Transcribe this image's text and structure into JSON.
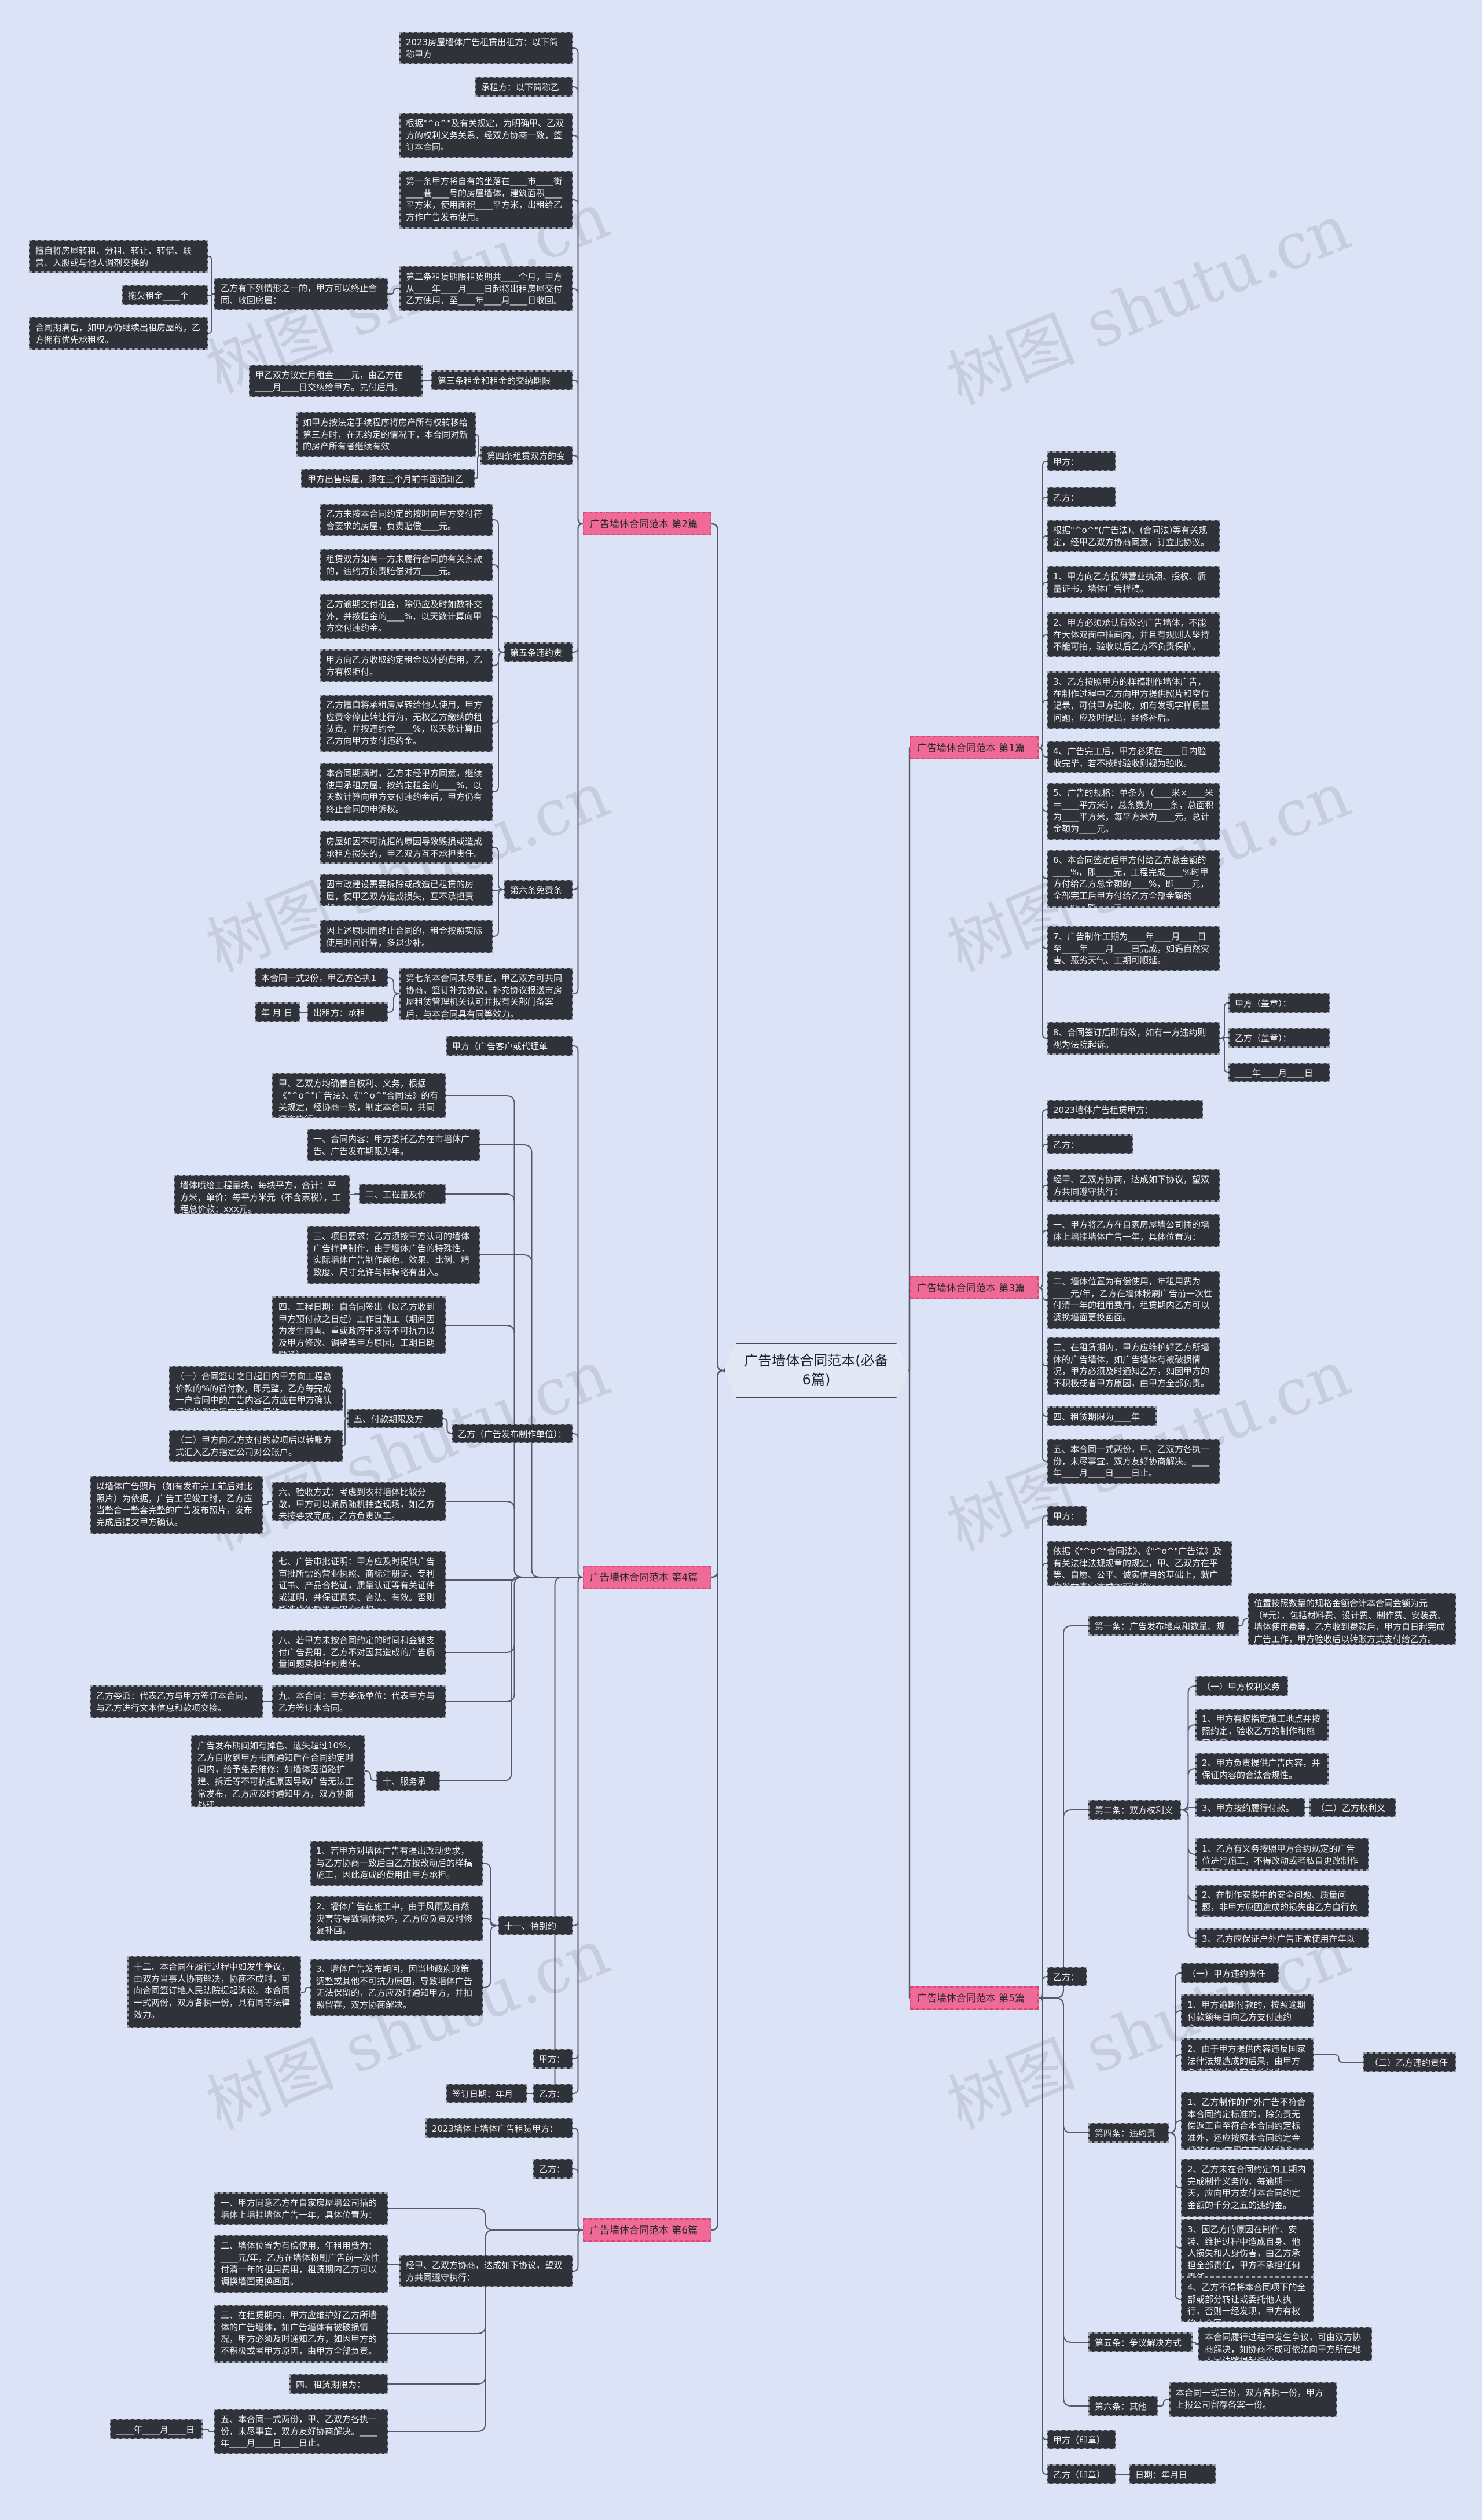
{
  "watermark": "树图 shutu.cn",
  "center": "广告墙体合同范本(必备6篇)",
  "sections": {
    "s1": "广告墙体合同范本 第1篇",
    "s2": "广告墙体合同范本 第2篇",
    "s3": "广告墙体合同范本 第3篇",
    "s4": "广告墙体合同范本 第4篇",
    "s5": "广告墙体合同范本 第5篇",
    "s6": "广告墙体合同范本 第6篇"
  },
  "nodes": {
    "s1_a": "甲方：________",
    "s1_b": "乙方：________",
    "s1_c": "根据\"^o^\"(广告法)、(合同法)等有关规定，经甲乙双方协商同意，订立此协议。",
    "s1_d": "1、甲方向乙方提供营业执照、授权、质量证书，墙体广告样稿。",
    "s1_e": "2、甲方必须承认有效的广告墙体，不能在大体双面中插画内，并且有规则人坚持不能可拍，验收以后乙方不负责保护。",
    "s1_f": "3、乙方按照甲方的样稿制作墙体广告，在制作过程中乙方向甲方提供照片和空位记录，可供甲方验收，如有发现字样质量问题，应及时提出，经修补后。",
    "s1_g": "4、广告完工后，甲方必须在____日内验收完毕，若不按时验收则视为验收。",
    "s1_h": "5、广告的规格：单条为（____米×____米＝____平方米），总条数为____条，总面积为____平方米，每平方米为____元，总计金额为____元。",
    "s1_i": "6、本合同签定后甲方付给乙方总金额的____%，即____元，工程完成____%时甲方付给乙方总金额的____%，即____元，全部完工后甲方付给乙方全部金额的____%，即____元。",
    "s1_j": "7、广告制作工期为____年____月____日至____年____月____日完成，如遇自然灾害、恶劣天气、工期可顺延。",
    "s1_k": "8、合同签订后即有效，如有一方违约则视为法院起诉。",
    "s1_l": "甲方（盖章）：________",
    "s1_m": "乙方（盖章）：________",
    "s1_n": "____年____月____日",
    "s3_a": "2023墙体广告租赁甲方：____________",
    "s3_b": "乙方：____________",
    "s3_c": "经甲、乙双方协商，达成如下协议，望双方共同遵守执行：",
    "s3_d": "一、甲方将乙方在自家房屋墙公司插的墙体上墙挂墙体广告一年，具体位置为：______",
    "s3_e": "二、墙体位置为有偿使用，年租用费为____元/年，乙方在墙体粉刷广告前一次性付清一年的租用费用，租赁期内乙方可以调换墙面更换画面。",
    "s3_f": "三、在租赁期内，甲方应维护好乙方所墙体的广告墙体，如广告墙体有被破损情况，甲方必须及时通知乙方，如因甲方的不积极或者甲方原因，由甲方全部负责。",
    "s3_g": "四、租赁期限为____年____月。",
    "s3_h": "五、本合同一式两份，甲、乙双方各执一份，未尽事宜，双方友好协商解决。____年____月____日____日止。",
    "s5_a": "甲方：",
    "s5_b": "依据《\"^o^\"合同法》、《\"^o^\"广告法》及有关法律法规规章的规定，甲、乙双方在平等、自愿、公平、诚实信用的基础上，就广告发布事宜达成如下协议：",
    "s5_c": "第一条：广告发布地点和数量、规格、金额",
    "s5_c1": "位置按照数量的规格金额合计本合同金额为元（¥元），包括材料费、设计费、制作费、安装费、墙体使用费等。乙方收到费款后，甲方自日起完成广告工作，甲方验收后以转账方式支付给乙方。",
    "s5_d": "第二条：双方权利义务",
    "s5_d1": "（一）甲方权利义务",
    "s5_d2": "1、甲方有权指定施工地点并按照约定，验收乙方的制作和施工质量。",
    "s5_d3": "2、甲方负责提供广告内容，并保证内容的合法合规性。",
    "s5_d4": "3、甲方按约履行付款。",
    "s5_d5": "（二）乙方权利义务",
    "s5_d6": "1、乙方有义务按照甲方合约规定的广告位进行施工，不得改动或者私自更改制作面积。",
    "s5_d7": "2、在制作安装中的安全问题、质量问题，非甲方原因造成的损失由乙方自行负责。",
    "s5_d8": "3、乙方应保证户外广告正常使用在年以上。",
    "s5_e": "乙方：",
    "s5_f": "第四条：违约责任",
    "s5_f1": "（一）甲方违约责任",
    "s5_f2": "1、甲方逾期付款的，按照逾期付款额每日向乙方支付违约金。",
    "s5_f3": "2、由于甲方提供内容违反国家法律法规造成的后果，由甲方负责赔偿由此带来的损失。",
    "s5_f4": "（二）乙方违约责任",
    "s5_f5": "1、乙方制作的户外广告不符合本合同约定标准的，除负责无偿返工直至符合本合同约定标准外，还应按照本合同约定金额的10%向甲方支付违约金。",
    "s5_f6": "2、乙方未在合同约定的工期内完成制作义务的，每逾期一天，应向甲方支付本合同约定金额的千分之五的违约金。",
    "s5_f7": "3、因乙方的原因在制作、安装、维护过程中造成自身、他人损失和人身伤害，由乙方承担全部责任，甲方不承担任何责任。",
    "s5_f8": "4、乙方不得将本合同项下的全部或部分转让或委托他人执行，否则一经发现，甲方有权终止合同。",
    "s5_g": "第五条：争议解决方式",
    "s5_g1": "本合同履行过程中发生争议，可由双方协商解决，如协商不成可依法向甲方所在地人民法院提起诉讼。",
    "s5_h": "第六条：其他",
    "s5_h1": "本合同一式三份，双方各执一份，甲方上报公司留存备案一份。",
    "s5_i": "甲方（印章）",
    "s5_j": "乙方（印章）",
    "s5_k": "日期：年月日",
    "s2_a": "2023房屋墙体广告租赁出租方：以下简称甲方",
    "s2_b": "承租方：以下简称乙方",
    "s2_c": "根据\"^o^\"及有关规定，为明确甲、乙双方的权利义务关系，经双方协商一致，签订本合同。",
    "s2_d": "第一条甲方将自有的坐落在____市____街____巷____号的房屋墙体，建筑面积____平方米，使用面积____平方米，出租给乙方作广告发布使用。",
    "s2_e": "第二条租赁期限租赁期共____个月，甲方从____年____月____日起将出租房屋交付乙方使用，至____年____月____日收回。",
    "s2_e0": "乙方有下列情形之一的，甲方可以终止合同、收回房屋：",
    "s2_e1": "擅自将房屋转租、分租、转让、转借、联营、入股或与他人调剂交换的",
    "s2_e2": "拖欠租金____个月。",
    "s2_e3": "合同期满后，如甲方仍继续出租房屋的，乙方拥有优先承租权。",
    "s2_f": "第三条租金和租金的交纳期限",
    "s2_f1": "甲乙双方议定月租金____元，由乙方在____月____日交纳给甲方。先付后用。",
    "s2_g": "第四条租赁双方的变更",
    "s2_g1": "如甲方按法定手续程序将房产所有权转移给第三方时，在无约定的情况下，本合同对新的房产所有者继续有效",
    "s2_g2": "甲方出售房屋，须在三个月前书面通知乙方",
    "s2_h": "第五条违约责任",
    "s2_h1": "乙方未按本合同约定的按时向甲方交付符合要求的房屋，负责赔偿____元。",
    "s2_h2": "租赁双方如有一方未履行合同的有关条款的，违约方负责赔偿对方____元。",
    "s2_h3": "乙方逾期交付租金，除仍应及时如数补交外，并按租金的____%，以天数计算向甲方交付违约金。",
    "s2_h4": "甲方向乙方收取约定租金以外的费用，乙方有权拒付。",
    "s2_h5": "乙方擅自将承租房屋转给他人使用，甲方应责令停止转让行为，无权乙方缴纳的租赁费，并按违约金____%，以天数计算由乙方向甲方支付违约金。",
    "s2_h6": "本合同期满时，乙方未经甲方同意，继续使用承租房屋，按约定租金的____%，以天数计算向甲方支付违约金后，甲方仍有终止合同的申诉权。",
    "s2_i": "第六条免责条件",
    "s2_i1": "房屋如因不可抗拒的原因导致毁损或造成承租方损失的，甲乙双方互不承担责任。",
    "s2_i2": "因市政建设需要拆除或改造已租赁的房屋，使甲乙双方造成损失，互不承担责任。",
    "s2_i3": "因上述原因而终止合同的，租金按照实际使用时间计算，多退少补。",
    "s2_j": "第七条本合同未尽事宜，甲乙双方可共同协商，签订补充协议。补充协议报送市房屋租赁管理机关认可并报有关部门备案后，与本合同具有同等效力。",
    "s2_j1": "本合同一式2份，甲乙方各执1份。",
    "s2_k": "出租方：承租方：",
    "s2_k1": "年 月 日",
    "s4_a": "甲方（广告客户或代理单位）：",
    "s4_b": "甲、乙双方均确善自权利、义务，根据《\"^o^\"广告法》、《\"^o^\"合同法》的有关规定，经协商一致，制定本合同，共同遵守执行。",
    "s4_c": "一、合同内容：甲方委托乙方在市墙体广告、广告发布期限为年。",
    "s4_d": "二、工程量及价款：",
    "s4_d1": "墙体喷绘工程量块，每块平方，合计：平方米，单价：每平方米元（不含票税），工程总价款：xxx元。",
    "s4_e": "三、项目要求：乙方须按甲方认可的墙体广告样稿制作，由于墙体广告的特殊性，实际墙体广告制作颜色、效果、比例、精致度、尺寸允许与样稿略有出入。",
    "s4_f": "四、工程日期：自合同签出（以乙方收到甲方预付款之日起）工作日施工（期间因为发生雨雪、重或政府干涉等不可抗力以及甲方修改、调整等甲方原因，工期日期顺延）",
    "s4_g": "乙方（广告发布制作单位）：",
    "s4_g0": "五、付款期限及方式：",
    "s4_g1": "（一）合同签订之日起日内甲方向工程总价款的%的首付款，即元整，乙方每完成一户合同中的广告内容乙方应在甲方确认后按比例向甲方支付工程款。",
    "s4_g2": "（二）甲方向乙方支付的款项后以转账方式汇入乙方指定公司对公账户。",
    "s4_h": "六、验收方式：考虑到农村墙体比较分散，甲方可以派员随机抽查现场，如乙方未按要求完成，乙方负责返工。",
    "s4_h0": "以墙体广告照片（如有发布完工前后对比照片）为依据，广告工程竣工时，乙方应当整合一整套完整的广告发布照片，发布完成后提交甲方确认。",
    "s4_i": "七、广告审批证明：甲方应及时提供广告审批所需的营业执照、商标注册证、专利证书、产品合格证，质量认证等有关证件或证明，并保证真实、合法、有效。否则所造成的后果由甲方承担。",
    "s4_j": "八、若甲方未按合同约定的时间和金额支付广告费用，乙方不对因其造成的广告质量问题承担任何责任。",
    "s4_k": "九、本合同：甲方委派单位：代表甲方与乙方签订本合同。",
    "s4_k1": "乙方委派：代表乙方与甲方签订本合同，与乙方进行文本信息和款项交接。",
    "s4_l": "十、服务承诺：",
    "s4_l1": "广告发布期间如有掉色、遗失超过10%，乙方自收到甲方书面通知后在合同约定时间内，给予免费维修；如墙体因道路扩建、拆迁等不可抗拒原因导致广告无法正常发布，乙方应及时通知甲方，双方协商处理。",
    "s4_m": "十一、特别约定：",
    "s4_m1": "1、若甲方对墙体广告有提出改动要求，与乙方协商一致后由乙方按改动后的样稿施工，因此造成的费用由甲方承担。",
    "s4_m2": "2、墙体广告在施工中，由于风雨及自然灾害等导致墙体损坏，乙方应负责及时修复补画。",
    "s4_m3": "3、墙体广告发布期间，因当地政府政策调整或其他不可抗力原因，导致墙体广告无法保留的，乙方应及时通知甲方，并拍照留存，双方协商解决。",
    "s4_m0": "十二、本合同在履行过程中如发生争议，由双方当事人协商解决，协商不成时，可向合同签订地人民法院提起诉讼。本合同一式两份，双方各执一份，具有同等法律效力。",
    "s4_n": "甲方：",
    "s4_o": "签订日期：年月日",
    "s4_p": "乙方：",
    "s6_a": "2023墙体上墙体广告租赁甲方：",
    "s6_b": "乙方：",
    "s6_c": "经甲、乙双方协商，达成如下协议，望双方共同遵守执行：",
    "s6_d": "一、甲方同意乙方在自家房屋墙公司插的墙体上墙挂墙体广告一年，具体位置为：______",
    "s6_e": "二、墙体位置为有偿使用，年租用费为：____元/年，乙方在墙体粉刷广告前一次性付清一年的租用费用，租赁期内乙方可以调换墙面更换画面。",
    "s6_f": "三、在租赁期内，甲方应维护好乙方所墙体的广告墙体，如广告墙体有被破损情况，甲方必须及时通知乙方，如因甲方的不积极或者甲方原因，由甲方全部负责。",
    "s6_g": "四、租赁期限为：____。",
    "s6_h": "五、本合同一式两份，甲、乙双方各执一份，未尽事宜，双方友好协商解决。____年____月____日____日止。",
    "s6_i": "____年____月____日"
  }
}
